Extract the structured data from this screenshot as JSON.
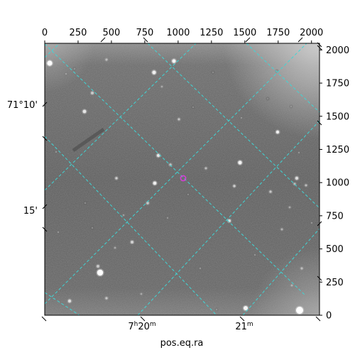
{
  "figure": {
    "xlabel": "pos.eq.ra",
    "top_ticks": [
      "0",
      "250",
      "500",
      "750",
      "1000",
      "1250",
      "1500",
      "1750",
      "2000"
    ],
    "right_ticks": [
      "0",
      "250",
      "500",
      "750",
      "1000",
      "1250",
      "1500",
      "1750",
      "2000"
    ],
    "ra_ticks": [
      {
        "h": "7",
        "hs": "h",
        "m": "20",
        "ms": "m"
      },
      {
        "h": "",
        "hs": "",
        "m": "21",
        "ms": "m"
      }
    ],
    "dec_ticks": [
      "71°10'",
      "15'"
    ],
    "colors": {
      "grid": "#3fd6d6",
      "marker": "#d63fd6",
      "background_sky": "#5a5a5a"
    },
    "marker_shape": "circle",
    "image": "grayscale astronomical star field with RA/Dec coordinate grid"
  }
}
